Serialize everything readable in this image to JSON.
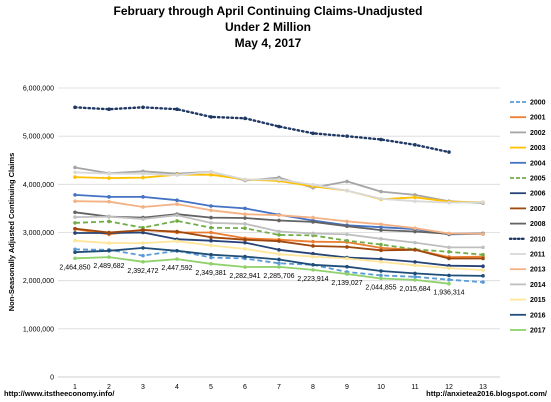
{
  "page": {
    "title_lines": [
      "February through April Continuing Claims-Unadjusted",
      "Under 2 Million",
      "May 4, 2017"
    ],
    "footer_left": "http://www.itstheeconomy.info/",
    "footer_right": "http://anxietea2016.blogspot.com/"
  },
  "chart_data": {
    "type": "line",
    "title": "February through April Continuing Claims-Unadjusted",
    "subtitle": "Under 2 Million",
    "date_line": "May 4, 2017",
    "ylabel": "Non-Seasonally Adjusted Continuing Claims",
    "xlabel": "",
    "x": [
      1,
      2,
      3,
      4,
      5,
      6,
      7,
      8,
      9,
      10,
      11,
      12,
      13
    ],
    "ylim": [
      0,
      6000000
    ],
    "yticks": [
      0,
      1000000,
      2000000,
      3000000,
      4000000,
      5000000,
      6000000
    ],
    "ytick_labels": [
      "0",
      "1,000,000",
      "2,000,000",
      "3,000,000",
      "4,000,000",
      "5,000,000",
      "6,000,000"
    ],
    "grid": true,
    "legend_position": "right",
    "series": [
      {
        "name": "2000",
        "color": "#5b9bd5",
        "dash": "dashed",
        "values": [
          2650000,
          2640000,
          2520000,
          2620000,
          2480000,
          2460000,
          2360000,
          2330000,
          2180000,
          2110000,
          2080000,
          2020000,
          1970000
        ]
      },
      {
        "name": "2001",
        "color": "#ed7d31",
        "dash": "solid",
        "values": [
          3070000,
          2960000,
          3060000,
          3000000,
          3000000,
          2880000,
          2850000,
          2810000,
          2800000,
          2680000,
          2640000,
          2490000,
          2500000
        ]
      },
      {
        "name": "2002",
        "color": "#a5a5a5",
        "dash": "solid",
        "values": [
          4350000,
          4230000,
          4270000,
          4220000,
          4260000,
          4080000,
          4140000,
          3930000,
          4060000,
          3850000,
          3780000,
          3650000,
          3610000
        ]
      },
      {
        "name": "2003",
        "color": "#ffc000",
        "dash": "solid",
        "values": [
          4150000,
          4130000,
          4140000,
          4200000,
          4200000,
          4100000,
          4070000,
          3960000,
          3870000,
          3690000,
          3730000,
          3640000,
          3630000
        ]
      },
      {
        "name": "2004",
        "color": "#4472c4",
        "dash": "solid",
        "values": [
          3780000,
          3740000,
          3740000,
          3670000,
          3550000,
          3500000,
          3370000,
          3250000,
          3150000,
          3110000,
          3070000,
          2960000,
          2970000
        ]
      },
      {
        "name": "2005",
        "color": "#70ad47",
        "dash": "dashed",
        "values": [
          3200000,
          3230000,
          3100000,
          3240000,
          3100000,
          3090000,
          2950000,
          2940000,
          2830000,
          2750000,
          2650000,
          2600000,
          2540000
        ]
      },
      {
        "name": "2006",
        "color": "#264478",
        "dash": "solid",
        "values": [
          2990000,
          2990000,
          3000000,
          2860000,
          2830000,
          2790000,
          2640000,
          2560000,
          2480000,
          2450000,
          2390000,
          2310000,
          2300000
        ]
      },
      {
        "name": "2007",
        "color": "#9e480e",
        "dash": "solid",
        "values": [
          3080000,
          3000000,
          3050000,
          3020000,
          2900000,
          2850000,
          2820000,
          2720000,
          2700000,
          2630000,
          2640000,
          2460000,
          2460000
        ]
      },
      {
        "name": "2008",
        "color": "#636363",
        "dash": "solid",
        "values": [
          3420000,
          3330000,
          3310000,
          3380000,
          3310000,
          3300000,
          3250000,
          3220000,
          3130000,
          3050000,
          3020000,
          2970000,
          2980000
        ]
      },
      {
        "name": "2010",
        "color": "#1f3864",
        "dash": "dotted",
        "values": [
          5600000,
          5560000,
          5600000,
          5560000,
          5400000,
          5370000,
          5200000,
          5060000,
          5000000,
          4930000,
          4820000,
          4670000,
          null
        ]
      },
      {
        "name": "2011",
        "color": "#d9d9d9",
        "dash": "solid",
        "values": [
          4250000,
          4220000,
          4220000,
          4190000,
          4260000,
          4100000,
          4100000,
          3990000,
          3870000,
          3700000,
          3650000,
          3620000,
          3630000
        ]
      },
      {
        "name": "2013",
        "color": "#f4b183",
        "dash": "solid",
        "values": [
          3650000,
          3640000,
          3530000,
          3590000,
          3460000,
          3380000,
          3360000,
          3310000,
          3230000,
          3170000,
          3090000,
          2980000,
          2970000
        ]
      },
      {
        "name": "2014",
        "color": "#bfbfbf",
        "dash": "solid",
        "values": [
          3320000,
          3330000,
          3280000,
          3360000,
          3200000,
          3180000,
          3020000,
          2980000,
          2960000,
          2870000,
          2790000,
          2690000,
          2690000
        ]
      },
      {
        "name": "2015",
        "color": "#ffe699",
        "dash": "solid",
        "values": [
          2830000,
          2780000,
          2780000,
          2820000,
          2730000,
          2660000,
          2550000,
          2500000,
          2460000,
          2390000,
          2320000,
          2260000,
          2220000
        ]
      },
      {
        "name": "2016",
        "color": "#1f4e79",
        "dash": "solid",
        "values": [
          2590000,
          2620000,
          2680000,
          2620000,
          2540000,
          2500000,
          2440000,
          2330000,
          2290000,
          2200000,
          2150000,
          2110000,
          2100000
        ]
      },
      {
        "name": "2017",
        "color": "#8fd16b",
        "dash": "solid",
        "values": [
          2464850,
          2489682,
          2392472,
          2447592,
          2349381,
          2282941,
          2285706,
          2223914,
          2139027,
          2044855,
          2015684,
          1936314,
          null
        ]
      }
    ],
    "data_labels": {
      "series": "2017",
      "labels": [
        "2,464,850",
        "2,489,682",
        "2,392,472",
        "2,447,592",
        "2,349,381",
        "2,282,941",
        "2,285,706",
        "2,223,914",
        "2,139,027",
        "2,044,855",
        "2,015,684",
        "1,936,314"
      ]
    }
  }
}
